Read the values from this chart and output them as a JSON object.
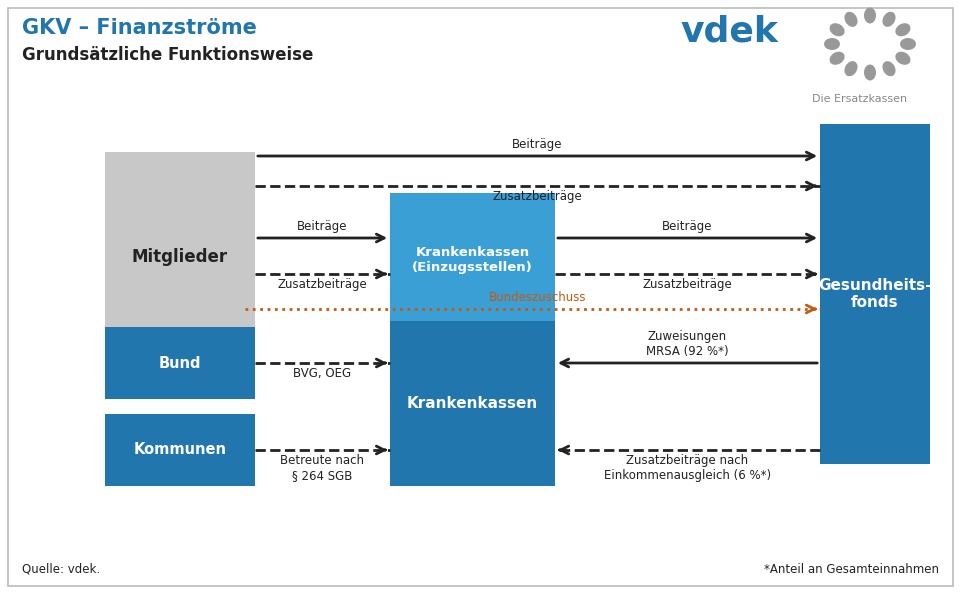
{
  "title1": "GKV – Finanzströme",
  "title2": "Grundsätzliche Funktionsweise",
  "title1_color": "#2176ae",
  "title2_color": "#222222",
  "bg_color": "#ffffff",
  "border_color": "#bbbbbb",
  "blue_dark": "#2176ae",
  "blue_mid": "#3a9fd4",
  "gray_box": "#c8c8c8",
  "text_white": "#ffffff",
  "text_dark": "#222222",
  "arrow_dark": "#222222",
  "orange_color": "#c55a11",
  "logo_gray": "#888888",
  "source_text": "Quelle: vdek.",
  "footnote_text": "*Anteil an Gesamteinnahmen"
}
